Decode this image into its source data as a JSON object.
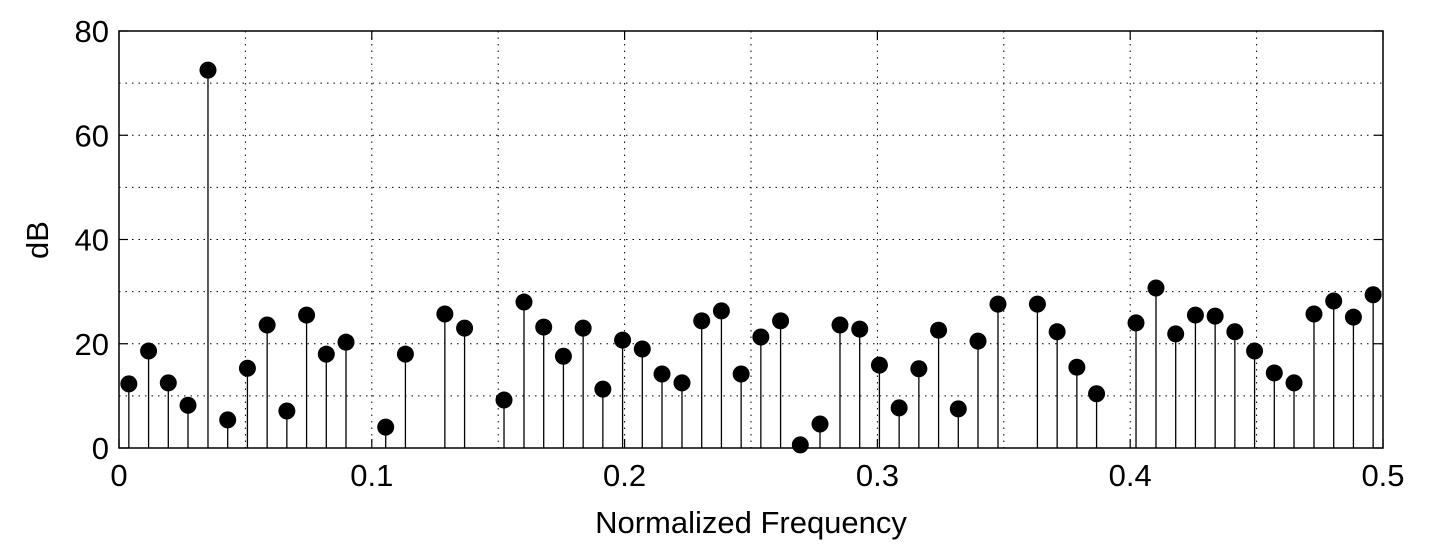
{
  "chart_data": {
    "type": "stem",
    "title": "",
    "xlabel": "Normalized Frequency",
    "ylabel": "dB",
    "xlim": [
      0,
      0.5
    ],
    "ylim": [
      0,
      80
    ],
    "xticks": [
      0,
      0.1,
      0.2,
      0.3,
      0.4,
      0.5
    ],
    "xtick_labels": [
      "0",
      "0.1",
      "0.2",
      "0.3",
      "0.4",
      "0.5"
    ],
    "yticks": [
      0,
      20,
      40,
      60,
      80
    ],
    "ytick_labels": [
      "0",
      "20",
      "40",
      "60",
      "80"
    ],
    "grid": true,
    "points": [
      [
        0.0039,
        12.3
      ],
      [
        0.0117,
        18.6
      ],
      [
        0.0195,
        12.5
      ],
      [
        0.0273,
        8.2
      ],
      [
        0.0352,
        72.5
      ],
      [
        0.043,
        5.4
      ],
      [
        0.0508,
        15.3
      ],
      [
        0.0586,
        23.6
      ],
      [
        0.0664,
        7.1
      ],
      [
        0.0742,
        25.5
      ],
      [
        0.082,
        18.0
      ],
      [
        0.0898,
        20.3
      ],
      [
        0.1055,
        4.0
      ],
      [
        0.1133,
        18.0
      ],
      [
        0.1289,
        25.7
      ],
      [
        0.1367,
        23.0
      ],
      [
        0.1523,
        9.2
      ],
      [
        0.1602,
        28.0
      ],
      [
        0.168,
        23.2
      ],
      [
        0.1758,
        17.6
      ],
      [
        0.1836,
        23.0
      ],
      [
        0.1914,
        11.3
      ],
      [
        0.1992,
        20.7
      ],
      [
        0.207,
        19.0
      ],
      [
        0.2148,
        14.2
      ],
      [
        0.2227,
        12.5
      ],
      [
        0.2305,
        24.4
      ],
      [
        0.2383,
        26.3
      ],
      [
        0.2461,
        14.2
      ],
      [
        0.2539,
        21.3
      ],
      [
        0.2617,
        24.4
      ],
      [
        0.2695,
        0.6
      ],
      [
        0.2773,
        4.6
      ],
      [
        0.2852,
        23.6
      ],
      [
        0.293,
        22.8
      ],
      [
        0.3008,
        15.9
      ],
      [
        0.3086,
        7.7
      ],
      [
        0.3164,
        15.2
      ],
      [
        0.3242,
        22.6
      ],
      [
        0.332,
        7.5
      ],
      [
        0.3398,
        20.5
      ],
      [
        0.3477,
        27.6
      ],
      [
        0.3633,
        27.6
      ],
      [
        0.3711,
        22.3
      ],
      [
        0.3789,
        15.5
      ],
      [
        0.3867,
        10.4
      ],
      [
        0.4023,
        24.0
      ],
      [
        0.4102,
        30.7
      ],
      [
        0.418,
        21.9
      ],
      [
        0.4258,
        25.5
      ],
      [
        0.4336,
        25.3
      ],
      [
        0.4414,
        22.3
      ],
      [
        0.4492,
        18.6
      ],
      [
        0.457,
        14.4
      ],
      [
        0.4648,
        12.5
      ],
      [
        0.4727,
        25.7
      ],
      [
        0.4805,
        28.2
      ],
      [
        0.4883,
        25.1
      ],
      [
        0.4961,
        29.4
      ]
    ]
  }
}
